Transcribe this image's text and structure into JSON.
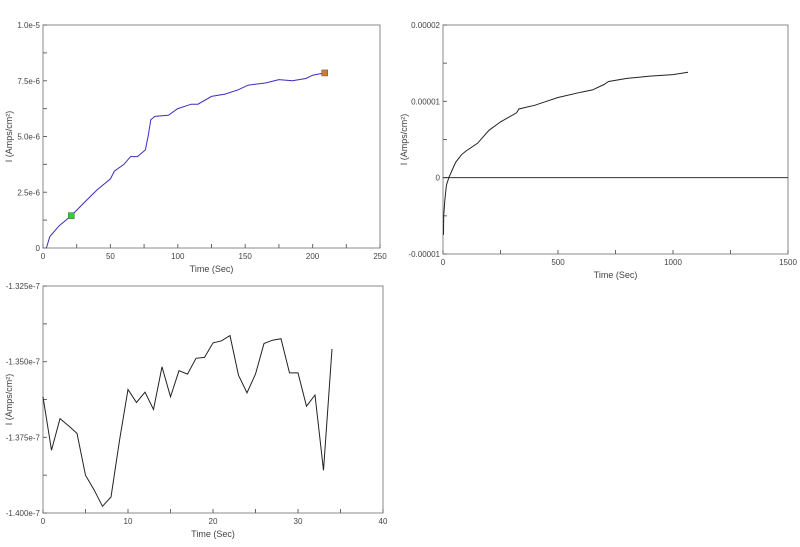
{
  "chart_data": [
    {
      "type": "line",
      "title": "",
      "xlabel": "Time (Sec)",
      "ylabel": "I (Amps/cm²)",
      "xlim": [
        0,
        250
      ],
      "ylim": [
        0,
        1e-05
      ],
      "x_major_ticks": [
        0,
        50,
        100,
        150,
        200,
        250
      ],
      "x_tick_labels": [
        "0",
        "50",
        "100",
        "150",
        "200",
        "250"
      ],
      "x_minor_step": 25,
      "y_major_ticks": [
        0,
        2.5e-06,
        5e-06,
        7.5e-06,
        1e-05
      ],
      "y_tick_labels": [
        "0",
        "2.5e-6",
        "5.0e-6",
        "7.5e-6",
        "1.0e-5"
      ],
      "y_minor_step": 1.25e-06,
      "grid": false,
      "series": [
        {
          "name": "current",
          "color": "#2b2bd6",
          "x": [
            2.5,
            5,
            12,
            21,
            30,
            40,
            50,
            53,
            60,
            65,
            70,
            76,
            78,
            80,
            83,
            93,
            100,
            110,
            115,
            125,
            135,
            145,
            152,
            165,
            175,
            185,
            195,
            200,
            209
          ],
          "y": [
            0,
            5e-07,
            1e-06,
            1.45e-06,
            2e-06,
            2.6e-06,
            3.1e-06,
            3.45e-06,
            3.75e-06,
            4.1e-06,
            4.1e-06,
            4.4e-06,
            5e-06,
            5.75e-06,
            5.9e-06,
            5.95e-06,
            6.25e-06,
            6.45e-06,
            6.45e-06,
            6.8e-06,
            6.9e-06,
            7.1e-06,
            7.3e-06,
            7.4e-06,
            7.55e-06,
            7.5e-06,
            7.6e-06,
            7.75e-06,
            7.85e-06
          ]
        }
      ],
      "markers": [
        {
          "name": "start-cursor",
          "x": 21,
          "y": 1.45e-06,
          "color": "#33cc33"
        },
        {
          "name": "end-cursor",
          "x": 209,
          "y": 7.85e-06,
          "color": "#d9782a"
        }
      ]
    },
    {
      "type": "line",
      "title": "",
      "xlabel": "Time (Sec)",
      "ylabel": "I (Amps/cm²)",
      "xlim": [
        0,
        1500
      ],
      "ylim": [
        -1e-05,
        2e-05
      ],
      "x_major_ticks": [
        0,
        500,
        1000,
        1500
      ],
      "x_tick_labels": [
        "0",
        "500",
        "1000",
        "1500"
      ],
      "x_minor_step": 250,
      "y_major_ticks": [
        -1e-05,
        0,
        1e-05,
        2e-05
      ],
      "y_tick_labels": [
        "-0.00001",
        "0",
        "0.00001",
        "0.00002"
      ],
      "y_minor_step": 5e-06,
      "zero_line": true,
      "grid": false,
      "series": [
        {
          "name": "current",
          "color": "#222222",
          "x": [
            2,
            3,
            8,
            15,
            25,
            40,
            55,
            80,
            100,
            150,
            200,
            250,
            320,
            330,
            400,
            450,
            500,
            600,
            650,
            700,
            720,
            800,
            900,
            1000,
            1065
          ],
          "y": [
            -7.5e-06,
            -5e-06,
            -3e-06,
            -1e-06,
            0,
            1e-06,
            2e-06,
            3e-06,
            3.5e-06,
            4.5e-06,
            6.2e-06,
            7.3e-06,
            8.5e-06,
            9e-06,
            9.5e-06,
            1e-05,
            1.05e-05,
            1.12e-05,
            1.15e-05,
            1.22e-05,
            1.26e-05,
            1.3e-05,
            1.33e-05,
            1.35e-05,
            1.38e-05
          ]
        }
      ]
    },
    {
      "type": "line",
      "title": "",
      "xlabel": "Time (Sec)",
      "ylabel": "I (Amps/cm²)",
      "xlim": [
        0,
        40
      ],
      "ylim": [
        -1.4e-07,
        -1.325e-07
      ],
      "x_major_ticks": [
        0,
        10,
        20,
        30,
        40
      ],
      "x_tick_labels": [
        "0",
        "10",
        "20",
        "30",
        "40"
      ],
      "x_minor_step": 5,
      "y_major_ticks": [
        -1.4e-07,
        -1.375e-07,
        -1.35e-07,
        -1.325e-07
      ],
      "y_tick_labels": [
        "-1.400e-7",
        "-1.375e-7",
        "-1.350e-7",
        "-1.325e-7"
      ],
      "y_minor_step": 1.25e-09,
      "grid": false,
      "series": [
        {
          "name": "current",
          "color": "#222222",
          "x": [
            0,
            1,
            2,
            3,
            4,
            5,
            6,
            7,
            8,
            9,
            10,
            11,
            12,
            13,
            14,
            15,
            16,
            17,
            18,
            19,
            20,
            21,
            22,
            23,
            24,
            25,
            26,
            27,
            28,
            29,
            30,
            31,
            32,
            33,
            34
          ],
          "y": [
            -1.3616e-07,
            -1.3793e-07,
            -1.3688e-07,
            -1.3712e-07,
            -1.3737e-07,
            -1.3875e-07,
            -1.3923e-07,
            -1.3978e-07,
            -1.3947e-07,
            -1.376e-07,
            -1.3592e-07,
            -1.3635e-07,
            -1.3601e-07,
            -1.3658e-07,
            -1.3517e-07,
            -1.3616e-07,
            -1.353e-07,
            -1.3541e-07,
            -1.3489e-07,
            -1.3486e-07,
            -1.3438e-07,
            -1.3431e-07,
            -1.3414e-07,
            -1.3545e-07,
            -1.3603e-07,
            -1.3541e-07,
            -1.344e-07,
            -1.3429e-07,
            -1.3424e-07,
            -1.3537e-07,
            -1.3537e-07,
            -1.3647e-07,
            -1.361e-07,
            -1.3859e-07,
            -1.3458e-07
          ]
        }
      ]
    }
  ]
}
